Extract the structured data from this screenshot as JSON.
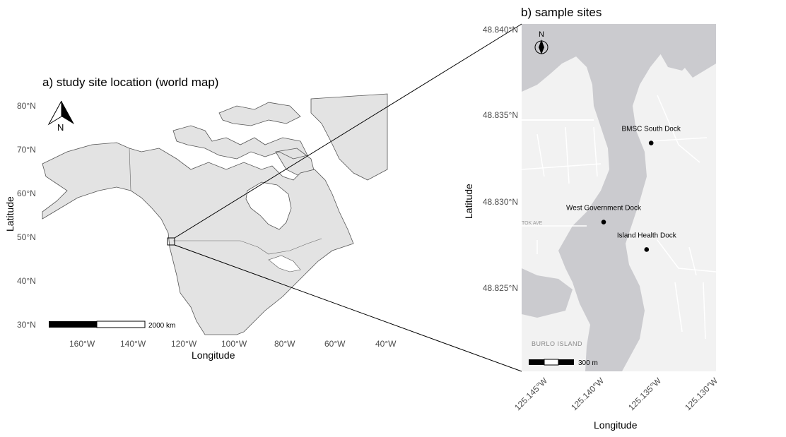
{
  "panel_a": {
    "title": "a) study site location (world map)",
    "xlabel": "Longitude",
    "ylabel": "Latitude",
    "x_ticks": [
      "160°W",
      "140°W",
      "120°W",
      "100°W",
      "80°W",
      "60°W",
      "40°W"
    ],
    "y_ticks": [
      "30°N",
      "40°N",
      "50°N",
      "60°N",
      "70°N",
      "80°N"
    ],
    "north_label": "N",
    "scale_label": "2000 km",
    "colors": {
      "land": "#e3e3e3",
      "coast": "#555555"
    }
  },
  "panel_b": {
    "title": "b) sample sites",
    "xlabel": "Longitude",
    "ylabel": "Latitude",
    "x_ticks": [
      "125.145°W",
      "125.140°W",
      "125.135°W",
      "125.130°W"
    ],
    "y_ticks": [
      "48.825°N",
      "48.830°N",
      "48.835°N",
      "48.840°N"
    ],
    "north_label": "N",
    "scale_label": "300 m",
    "place_label": "BURLO ISLAND",
    "road_labels": [
      "TOK AVE"
    ],
    "sites": [
      {
        "name": "BMSC South Dock",
        "lon": -125.1353,
        "lat": 48.8334
      },
      {
        "name": "West Government Dock",
        "lon": -125.1395,
        "lat": 48.8288
      },
      {
        "name": "Island Health Dock",
        "lon": -125.1357,
        "lat": 48.8272
      }
    ],
    "colors": {
      "land": "#f2f2f2",
      "water": "#cbcbcf",
      "road": "#ffffff"
    }
  }
}
